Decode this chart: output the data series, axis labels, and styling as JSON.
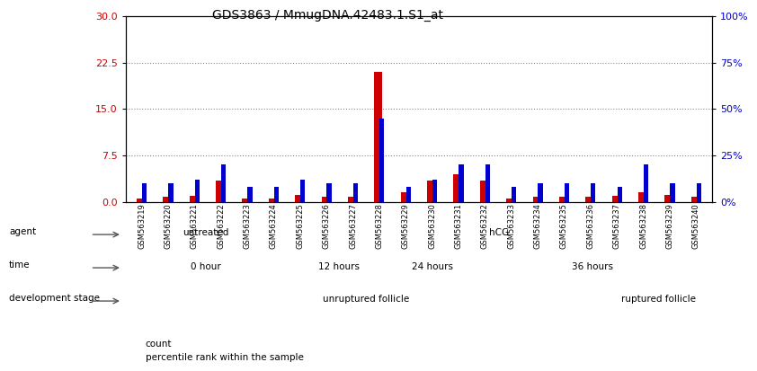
{
  "title": "GDS3863 / MmugDNA.42483.1.S1_at",
  "samples": [
    "GSM563219",
    "GSM563220",
    "GSM563221",
    "GSM563222",
    "GSM563223",
    "GSM563224",
    "GSM563225",
    "GSM563226",
    "GSM563227",
    "GSM563228",
    "GSM563229",
    "GSM563230",
    "GSM563231",
    "GSM563232",
    "GSM563233",
    "GSM563234",
    "GSM563235",
    "GSM563236",
    "GSM563237",
    "GSM563238",
    "GSM563239",
    "GSM563240"
  ],
  "count_values": [
    0.5,
    0.8,
    1.0,
    3.5,
    0.5,
    0.5,
    1.2,
    0.8,
    0.8,
    21.0,
    1.5,
    3.5,
    4.5,
    3.5,
    0.5,
    0.8,
    0.8,
    0.8,
    1.0,
    1.5,
    1.2,
    0.8
  ],
  "percentile_values": [
    10.0,
    10.0,
    12.0,
    20.0,
    8.0,
    8.0,
    12.0,
    10.0,
    10.0,
    45.0,
    8.0,
    12.0,
    20.0,
    20.0,
    8.0,
    10.0,
    10.0,
    10.0,
    8.0,
    20.0,
    10.0,
    10.0
  ],
  "count_color": "#cc0000",
  "percentile_color": "#0000cc",
  "ylim_left": [
    0,
    30
  ],
  "ylim_right": [
    0,
    100
  ],
  "yticks_left": [
    0,
    7.5,
    15,
    22.5,
    30
  ],
  "yticks_right": [
    0,
    25,
    50,
    75,
    100
  ],
  "agent_groups": [
    {
      "label": "untreated",
      "start": 0,
      "end": 6,
      "color": "#aaddaa"
    },
    {
      "label": "hCG",
      "start": 6,
      "end": 22,
      "color": "#55cc55"
    }
  ],
  "time_groups": [
    {
      "label": "0 hour",
      "start": 0,
      "end": 6,
      "color": "#ccccff"
    },
    {
      "label": "12 hours",
      "start": 6,
      "end": 10,
      "color": "#aaaaee"
    },
    {
      "label": "24 hours",
      "start": 10,
      "end": 13,
      "color": "#9999dd"
    },
    {
      "label": "36 hours",
      "start": 13,
      "end": 22,
      "color": "#7777bb"
    }
  ],
  "stage_groups": [
    {
      "label": "unruptured follicle",
      "start": 0,
      "end": 18,
      "color": "#ffbbbb"
    },
    {
      "label": "ruptured follicle",
      "start": 18,
      "end": 22,
      "color": "#dd6666"
    }
  ],
  "grid_color": "#888888",
  "bg_color": "#ffffff",
  "legend_count": "count",
  "legend_percentile": "percentile rank within the sample"
}
